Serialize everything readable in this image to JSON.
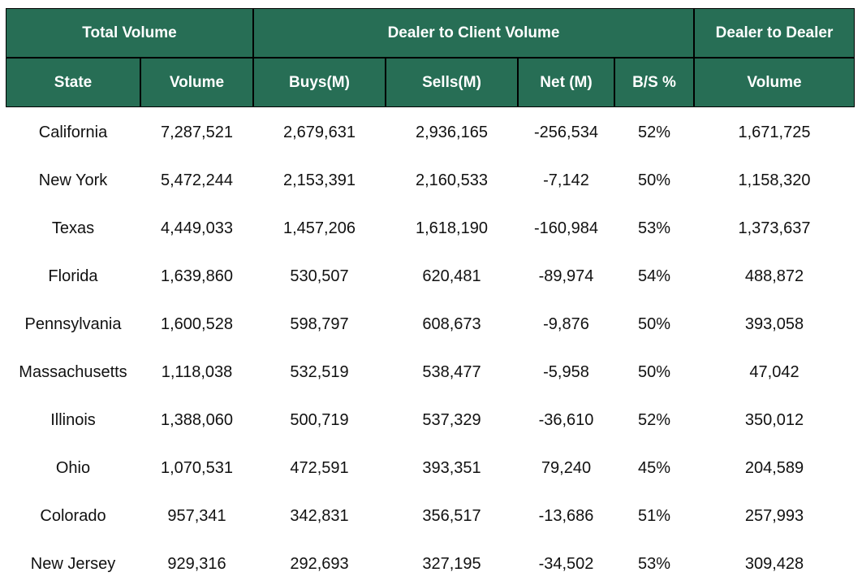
{
  "table": {
    "groups": [
      "Total Volume",
      "Dealer to Client Volume",
      "Dealer to Dealer"
    ],
    "columns": [
      "State",
      "Volume",
      "Buys(M)",
      "Sells(M)",
      "Net (M)",
      "B/S %",
      "Volume"
    ],
    "rows": [
      [
        "California",
        "7,287,521",
        "2,679,631",
        "2,936,165",
        "-256,534",
        "52%",
        "1,671,725"
      ],
      [
        "New York",
        "5,472,244",
        "2,153,391",
        "2,160,533",
        "-7,142",
        "50%",
        "1,158,320"
      ],
      [
        "Texas",
        "4,449,033",
        "1,457,206",
        "1,618,190",
        "-160,984",
        "53%",
        "1,373,637"
      ],
      [
        "Florida",
        "1,639,860",
        "530,507",
        "620,481",
        "-89,974",
        "54%",
        "488,872"
      ],
      [
        "Pennsylvania",
        "1,600,528",
        "598,797",
        "608,673",
        "-9,876",
        "50%",
        "393,058"
      ],
      [
        "Massachusetts",
        "1,118,038",
        "532,519",
        "538,477",
        "-5,958",
        "50%",
        "47,042"
      ],
      [
        "Illinois",
        "1,388,060",
        "500,719",
        "537,329",
        "-36,610",
        "52%",
        "350,012"
      ],
      [
        "Ohio",
        "1,070,531",
        "472,591",
        "393,351",
        "79,240",
        "45%",
        "204,589"
      ],
      [
        "Colorado",
        "957,341",
        "342,831",
        "356,517",
        "-13,686",
        "51%",
        "257,993"
      ],
      [
        "New Jersey",
        "929,316",
        "292,693",
        "327,195",
        "-34,502",
        "53%",
        "309,428"
      ]
    ]
  }
}
